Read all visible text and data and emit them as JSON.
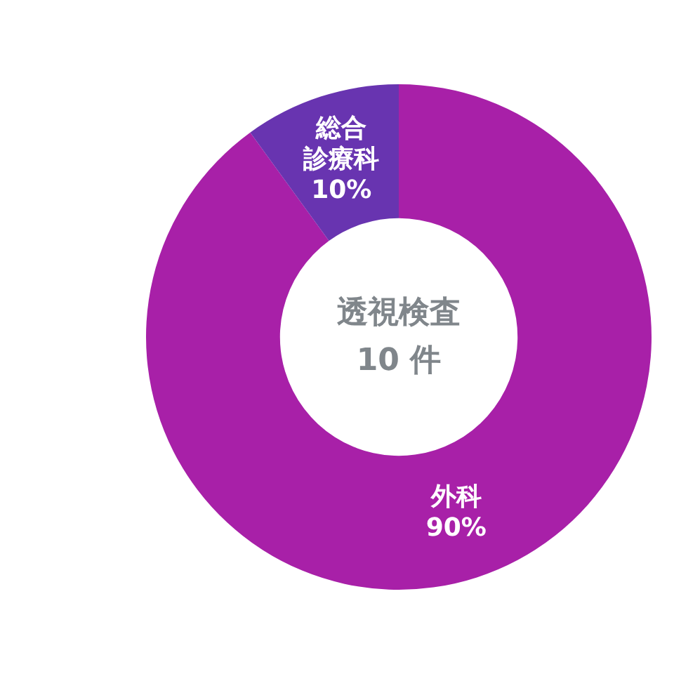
{
  "chart_data": {
    "type": "donut",
    "title": "透視検査",
    "subtitle": "10 件",
    "categories": [
      "外科",
      "総合診療科"
    ],
    "values": [
      90,
      10
    ],
    "colors": [
      "#a820a8",
      "#6834b0"
    ],
    "value_labels": [
      "90%",
      "10%"
    ]
  }
}
